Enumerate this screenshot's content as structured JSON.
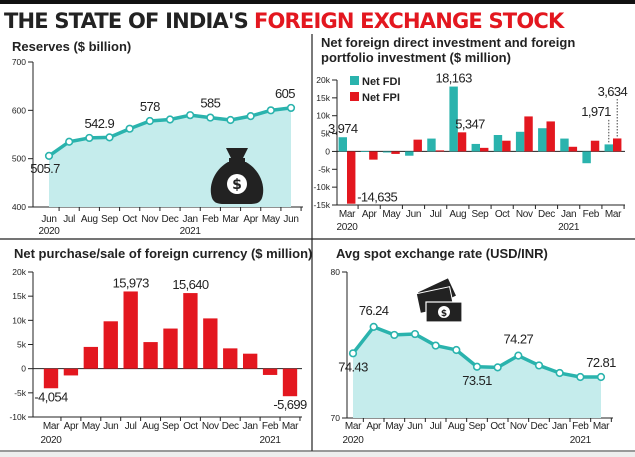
{
  "title": {
    "part1": "THE STATE OF INDIA'S",
    "part2": "FOREIGN EXCHANGE STOCK"
  },
  "colors": {
    "teal": "#2ab3ad",
    "teal_fill": "#c5ecec",
    "red": "#e3171f",
    "title_red": "#e3171f",
    "title_dark": "#222222"
  },
  "chart_data": [
    {
      "id": "reserves",
      "type": "line",
      "title": "Reserves ($ billion)",
      "categories": [
        "Jun",
        "Jul",
        "Aug",
        "Sep",
        "Oct",
        "Nov",
        "Dec",
        "Jan",
        "Feb",
        "Mar",
        "Apr",
        "May",
        "Jun"
      ],
      "year_labels": [
        {
          "index": 0,
          "text": "2020"
        },
        {
          "index": 7,
          "text": "2021"
        }
      ],
      "values": [
        505.7,
        535,
        542.9,
        544,
        562,
        578,
        581,
        590,
        585,
        580,
        588,
        600,
        605
      ],
      "data_labels": [
        {
          "index": 0,
          "text": "505.7"
        },
        {
          "index": 2,
          "text": "542.9"
        },
        {
          "index": 5,
          "text": "578"
        },
        {
          "index": 8,
          "text": "585"
        },
        {
          "index": 12,
          "text": "605"
        }
      ],
      "yticks": [
        400,
        500,
        600,
        700
      ],
      "ytick_labels": [
        "400",
        "500",
        "600",
        "700"
      ],
      "ylim": [
        400,
        700
      ],
      "area_fill": true,
      "icon": "money-bag-icon"
    },
    {
      "id": "fdi-fpi",
      "type": "bar",
      "title_lines": [
        "Net foreign direct investment and foreign",
        "portfolio investment ($ million)"
      ],
      "categories": [
        "Mar",
        "Apr",
        "May",
        "Jun",
        "Jul",
        "Aug",
        "Sep",
        "Oct",
        "Nov",
        "Dec",
        "Jan",
        "Feb",
        "Mar"
      ],
      "year_labels": [
        {
          "index": 0,
          "text": "2020"
        },
        {
          "index": 10,
          "text": "2021"
        }
      ],
      "series": [
        {
          "name": "Net FDI",
          "color": "#2ab3ad",
          "values": [
            3974,
            100,
            -300,
            -1200,
            3600,
            18163,
            2100,
            4600,
            5500,
            6500,
            3600,
            -3300,
            1971
          ]
        },
        {
          "name": "Net FPI",
          "color": "#e3171f",
          "values": [
            -14635,
            -2300,
            -700,
            3300,
            300,
            5347,
            1000,
            3000,
            9800,
            8400,
            1300,
            3000,
            3634
          ]
        }
      ],
      "data_labels": [
        {
          "series": 0,
          "index": 0,
          "text": "3,974"
        },
        {
          "series": 1,
          "index": 0,
          "text": "-14,635"
        },
        {
          "series": 0,
          "index": 5,
          "text": "18,163"
        },
        {
          "series": 1,
          "index": 5,
          "text": "5,347"
        },
        {
          "series": 0,
          "index": 12,
          "text": "1,971"
        },
        {
          "series": 1,
          "index": 12,
          "text": "3,634"
        }
      ],
      "yticks": [
        -15000,
        -10000,
        -5000,
        0,
        5000,
        10000,
        15000,
        20000
      ],
      "ytick_labels": [
        "-15k",
        "-10k",
        "-5k",
        "0",
        "5k",
        "10k",
        "15k",
        "20k"
      ],
      "ylim": [
        -15000,
        20000
      ],
      "legend": "top-left"
    },
    {
      "id": "forex-purchase",
      "type": "bar",
      "title": "Net purchase/sale of foreign currency ($ million)",
      "categories": [
        "Mar",
        "Apr",
        "May",
        "Jun",
        "Jul",
        "Aug",
        "Sep",
        "Oct",
        "Nov",
        "Dec",
        "Jan",
        "Feb",
        "Mar"
      ],
      "year_labels": [
        {
          "index": 0,
          "text": "2020"
        },
        {
          "index": 11,
          "text": "2021"
        }
      ],
      "series": [
        {
          "color": "#e3171f",
          "values": [
            -4054,
            -1400,
            4500,
            9800,
            15973,
            5500,
            8300,
            15640,
            10400,
            4200,
            3100,
            -1300,
            -5699
          ]
        }
      ],
      "data_labels": [
        {
          "series": 0,
          "index": 0,
          "text": "-4,054"
        },
        {
          "series": 0,
          "index": 4,
          "text": "15,973"
        },
        {
          "series": 0,
          "index": 7,
          "text": "15,640"
        },
        {
          "series": 0,
          "index": 12,
          "text": "-5,699"
        }
      ],
      "yticks": [
        -10000,
        -5000,
        0,
        5000,
        10000,
        15000,
        20000
      ],
      "ytick_labels": [
        "-10k",
        "-5k",
        "0",
        "5k",
        "10k",
        "15k",
        "20k"
      ],
      "ylim": [
        -10000,
        20000
      ]
    },
    {
      "id": "exchange-rate",
      "type": "line",
      "title": "Avg spot exchange rate (USD/INR)",
      "categories": [
        "Mar",
        "Apr",
        "May",
        "Jun",
        "Jul",
        "Aug",
        "Sep",
        "Oct",
        "Nov",
        "Dec",
        "Jan",
        "Feb",
        "Mar"
      ],
      "year_labels": [
        {
          "index": 0,
          "text": "2020"
        },
        {
          "index": 11,
          "text": "2021"
        }
      ],
      "values": [
        74.43,
        76.24,
        75.69,
        75.75,
        74.96,
        74.66,
        73.51,
        73.47,
        74.27,
        73.6,
        73.08,
        72.81,
        72.81
      ],
      "data_labels": [
        {
          "index": 0,
          "text": "74.43"
        },
        {
          "index": 1,
          "text": "76.24"
        },
        {
          "index": 6,
          "text": "73.51"
        },
        {
          "index": 8,
          "text": "74.27"
        },
        {
          "index": 12,
          "text": "72.81"
        }
      ],
      "yticks": [
        70,
        80
      ],
      "ytick_labels": [
        "70",
        "80"
      ],
      "ylim": [
        70,
        80
      ],
      "area_fill": true,
      "icon": "banknotes-icon"
    }
  ]
}
